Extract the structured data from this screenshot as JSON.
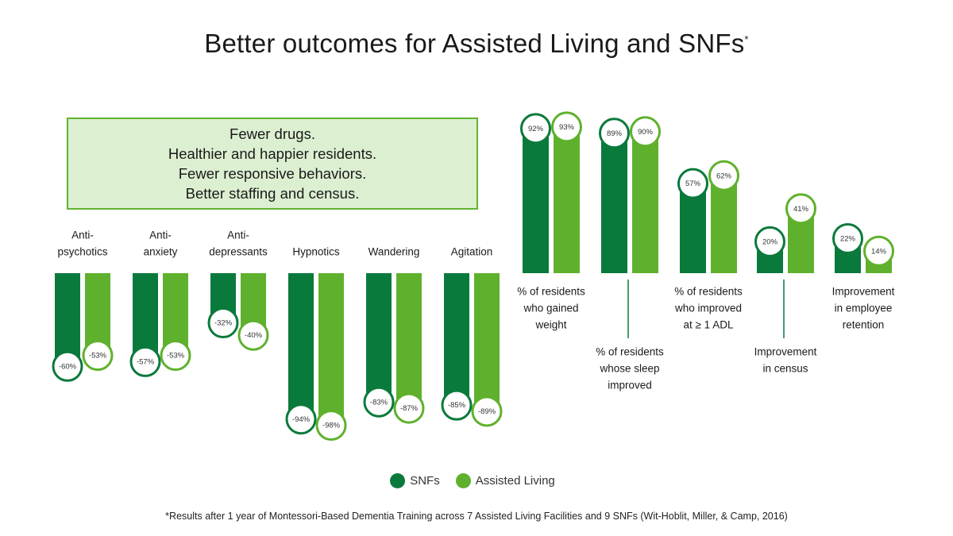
{
  "title": "Better outcomes for Assisted Living and SNFs",
  "title_mark": "*",
  "callout": {
    "lines": [
      "Fewer drugs.",
      "Healthier and happier residents.",
      "Fewer responsive behaviors.",
      "Better staffing and census."
    ]
  },
  "colors": {
    "snfs": "#0a7a3c",
    "assisted_living": "#5fb12d",
    "callout_bg": "#dcefd1",
    "callout_border": "#61b230"
  },
  "legend": {
    "snfs": "SNFs",
    "assisted_living": "Assisted Living"
  },
  "footnote": "*Results after 1 year of Montessori-Based Dementia Training across 7 Assisted Living Facilities and 9 SNFs (Wit-Hoblit, Miller, & Camp, 2016)",
  "chart_data": [
    {
      "type": "bar",
      "categories": [
        [
          "Anti-",
          "psychotics"
        ],
        [
          "Anti-",
          "anxiety"
        ],
        [
          "Anti-",
          "depressants"
        ],
        [
          "Hypnotics"
        ],
        [
          "Wandering"
        ],
        [
          "Agitation"
        ]
      ],
      "series": [
        {
          "name": "SNFs",
          "values": [
            -60,
            -57,
            -32,
            -94,
            -83,
            -85
          ]
        },
        {
          "name": "Assisted Living",
          "values": [
            -53,
            -53,
            -40,
            -98,
            -87,
            -89
          ]
        }
      ],
      "value_labels": {
        "SNFs": [
          "-60%",
          "-57%",
          "-32%",
          "-94%",
          "-83%",
          "-85%"
        ],
        "Assisted Living": [
          "-53%",
          "-53%",
          "-40%",
          "-98%",
          "-87%",
          "-89%"
        ]
      },
      "ylim": [
        -100,
        0
      ]
    },
    {
      "type": "bar",
      "categories": [
        [
          "% of residents",
          "who gained",
          "weight"
        ],
        [
          "% of residents",
          "whose sleep",
          "improved"
        ],
        [
          "% of residents",
          "who improved",
          "at ≥ 1 ADL"
        ],
        [
          "Improvement",
          "in census"
        ],
        [
          "Improvement",
          "in employee",
          "retention"
        ]
      ],
      "series": [
        {
          "name": "SNFs",
          "values": [
            92,
            89,
            57,
            20,
            22
          ]
        },
        {
          "name": "Assisted Living",
          "values": [
            93,
            90,
            62,
            41,
            14
          ]
        }
      ],
      "value_labels": {
        "SNFs": [
          "92%",
          "89%",
          "57%",
          "20%",
          "22%"
        ],
        "Assisted Living": [
          "93%",
          "90%",
          "62%",
          "41%",
          "14%"
        ]
      },
      "ylim": [
        0,
        100
      ]
    }
  ]
}
